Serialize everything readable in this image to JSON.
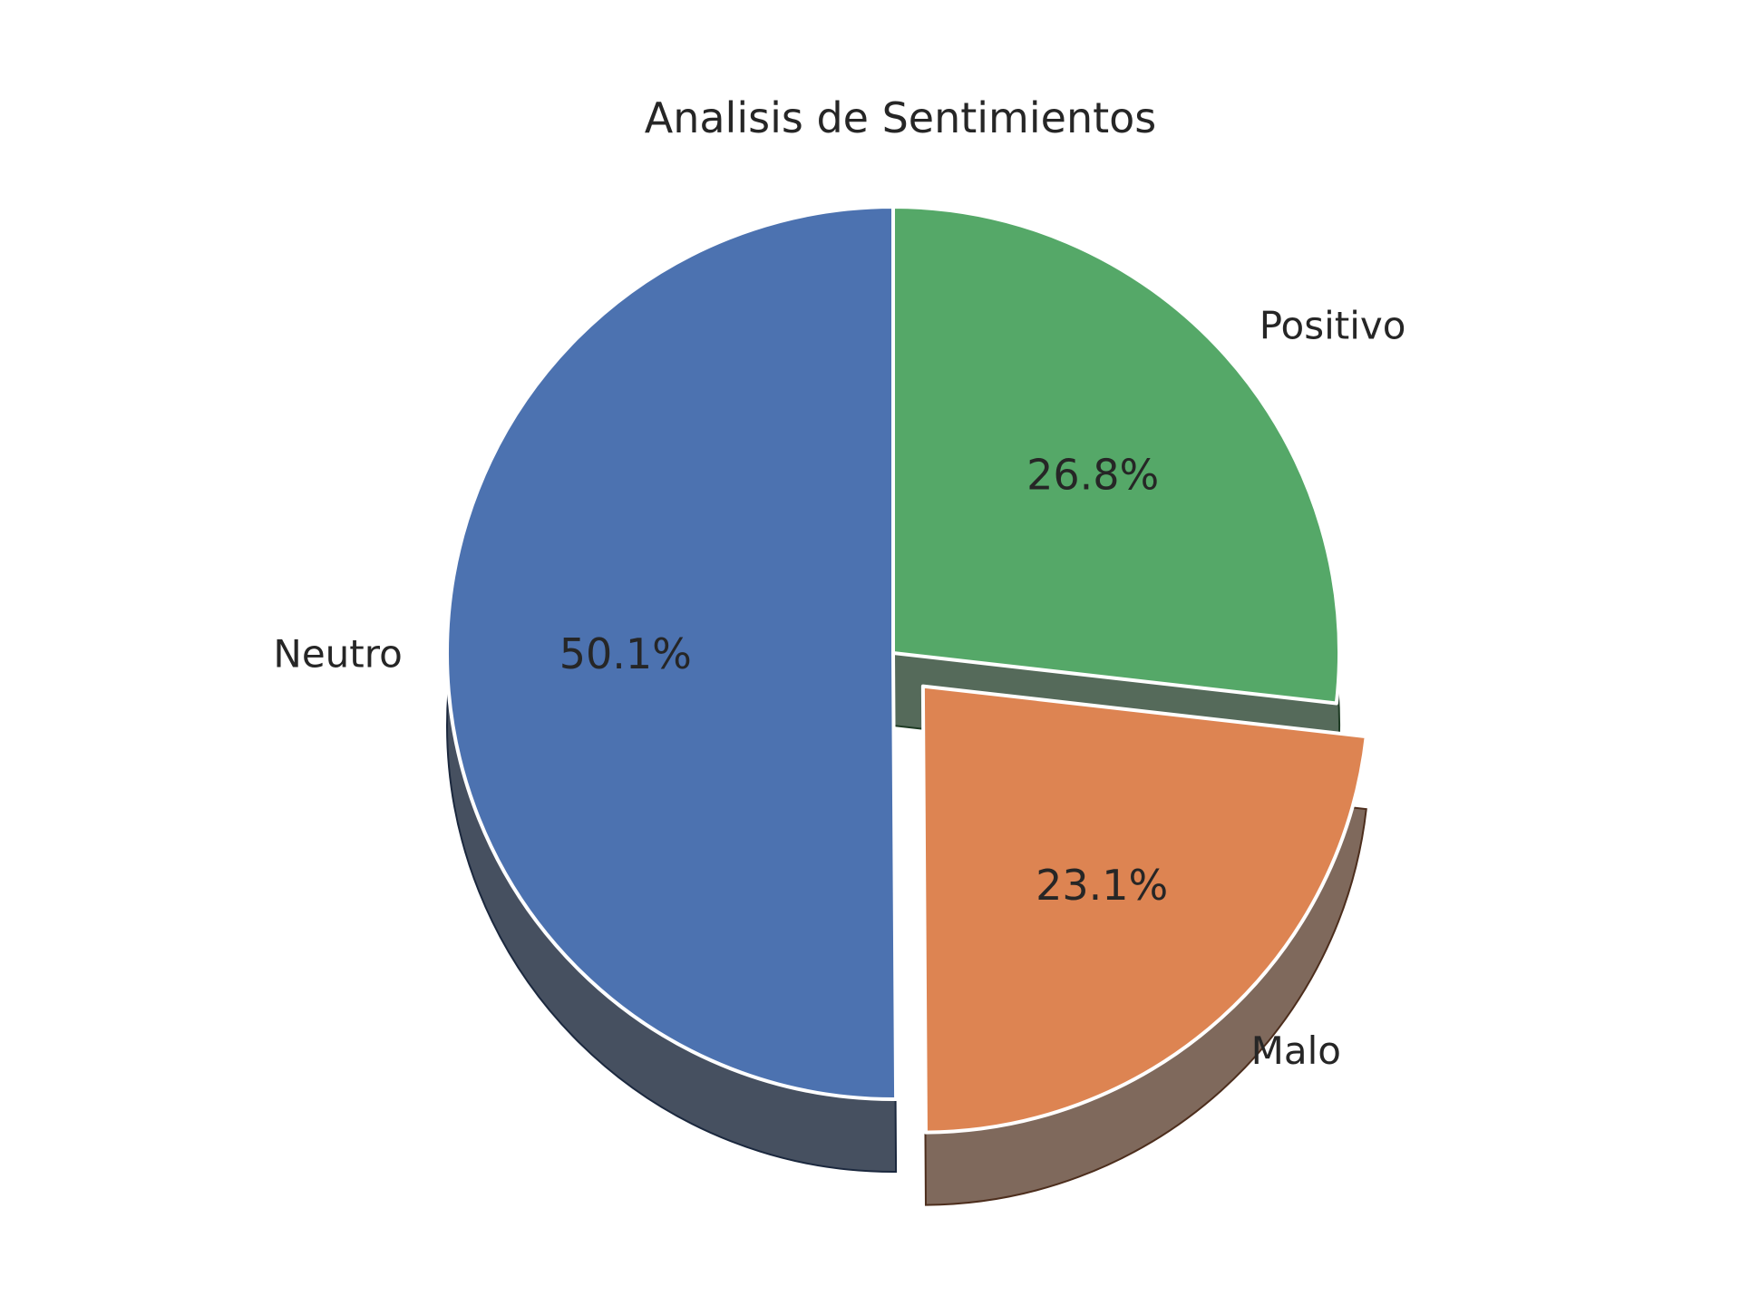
{
  "chart_data": {
    "type": "pie",
    "title": "Analisis de Sentimientos",
    "start_angle_deg": 90,
    "direction": "counterclockwise",
    "shadow": true,
    "slices": [
      {
        "label": "Neutro",
        "value": 50.1,
        "pct_label": "50.1%",
        "color": "#4c72b0",
        "explode": 0
      },
      {
        "label": "Malo",
        "value": 23.1,
        "pct_label": "23.1%",
        "color": "#dd8452",
        "explode": 0.1
      },
      {
        "label": "Positivo",
        "value": 26.8,
        "pct_label": "26.8%",
        "color": "#55a868",
        "explode": 0
      }
    ],
    "edge_color": "#ffffff"
  }
}
